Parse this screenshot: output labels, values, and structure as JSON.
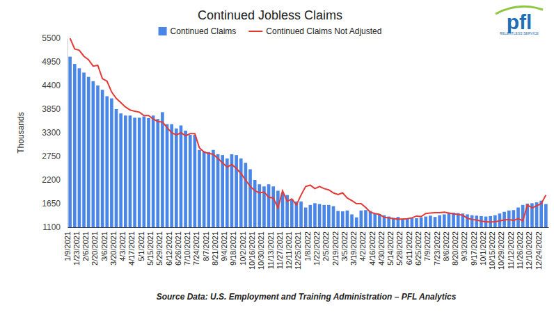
{
  "chart_data": {
    "type": "bar",
    "title": "Continued Jobless Claims",
    "y_label": "Thousands",
    "annotations": [
      "Source Data: U.S. Employment and Training Administration – PFL Analytics",
      "pfl",
      "RELENTLESS SERVICE"
    ],
    "categories": [
      "1/9/2021",
      null,
      "1/23/2021",
      null,
      "2/6/2021",
      null,
      "2/20/2021",
      null,
      "3/6/2021",
      null,
      "3/20/2021",
      null,
      "4/3/2021",
      null,
      "4/17/2021",
      null,
      "5/1/2021",
      null,
      "5/15/2021",
      null,
      "5/29/2021",
      null,
      "6/12/2021",
      null,
      "6/26/2021",
      null,
      "7/10/2021",
      null,
      "7/24/2021",
      null,
      "8/7/2021",
      null,
      "8/21/2021",
      null,
      "9/4/2021",
      null,
      "9/18/2021",
      null,
      "10/2/2021",
      null,
      "10/16/2021",
      null,
      "10/30/2021",
      null,
      "11/13/2021",
      null,
      "11/27/2021",
      null,
      "12/11/2021",
      null,
      "12/25/2021",
      null,
      "1/8/2022",
      null,
      "1/22/2022",
      null,
      "2/5/2022",
      null,
      "2/19/2022",
      null,
      "3/5/2022",
      null,
      "3/19/2022",
      null,
      "4/2/2022",
      null,
      "4/16/2022",
      null,
      "4/30/2022",
      null,
      "5/14/2022",
      null,
      "5/28/2022",
      null,
      "6/11/2022",
      null,
      "6/25/2022",
      null,
      "7/9/2022",
      null,
      "7/23/2022",
      null,
      "8/6/2022",
      null,
      "8/20/2022",
      null,
      "9/3/2022",
      null,
      "9/17/2022",
      null,
      "10/1/2022",
      null,
      "10/15/2022",
      null,
      "10/29/2022",
      null,
      "11/12/2022",
      null,
      "11/26/2022",
      null,
      "12/10/2022",
      null,
      "12/24/2022",
      null
    ],
    "series": [
      {
        "name": "Continued Claims",
        "type": "bar",
        "color": "#4a86e8",
        "values": [
          5070,
          4900,
          4800,
          4700,
          4600,
          4500,
          4400,
          4300,
          4150,
          4100,
          3850,
          3750,
          3700,
          3700,
          3650,
          3650,
          3680,
          3640,
          3700,
          3620,
          3780,
          3500,
          3500,
          3400,
          3470,
          3350,
          3250,
          3250,
          2900,
          2870,
          2850,
          2900,
          2800,
          2780,
          2700,
          2800,
          2780,
          2700,
          2600,
          2450,
          2200,
          2100,
          2050,
          2100,
          2050,
          1950,
          1900,
          1850,
          1750,
          1700,
          1700,
          1560,
          1620,
          1660,
          1640,
          1620,
          1620,
          1590,
          1480,
          1470,
          1490,
          1400,
          1330,
          1490,
          1500,
          1480,
          1420,
          1400,
          1380,
          1350,
          1320,
          1340,
          1300,
          1300,
          1310,
          1310,
          1330,
          1350,
          1370,
          1340,
          1380,
          1400,
          1430,
          1440,
          1430,
          1420,
          1400,
          1380,
          1370,
          1360,
          1350,
          1360,
          1380,
          1420,
          1460,
          1490,
          1500,
          1560,
          1620,
          1650,
          1660,
          1680,
          1720,
          1640
        ]
      },
      {
        "name": "Continued Claims Not Adjusted",
        "type": "line",
        "color": "#e53935",
        "values": [
          5500,
          5250,
          5220,
          5080,
          5000,
          4850,
          4870,
          4560,
          4500,
          4250,
          4100,
          4000,
          3900,
          3830,
          3800,
          3780,
          3700,
          3700,
          3620,
          3560,
          3550,
          3420,
          3300,
          3250,
          3300,
          3230,
          3280,
          3280,
          2950,
          2850,
          2820,
          2800,
          2700,
          2600,
          2500,
          2560,
          2470,
          2350,
          2200,
          2050,
          1950,
          1900,
          1920,
          1800,
          1780,
          1550,
          1950,
          1700,
          1760,
          1620,
          1850,
          2050,
          2080,
          2000,
          2050,
          2000,
          1970,
          1900,
          1860,
          1900,
          1780,
          1720,
          1650,
          1650,
          1560,
          1450,
          1420,
          1400,
          1330,
          1320,
          1300,
          1290,
          1290,
          1300,
          1320,
          1360,
          1350,
          1420,
          1430,
          1440,
          1440,
          1450,
          1430,
          1410,
          1400,
          1380,
          1310,
          1280,
          1270,
          1240,
          1230,
          1220,
          1230,
          1250,
          1270,
          1280,
          1260,
          1300,
          1250,
          1620,
          1550,
          1600,
          1650,
          1850
        ]
      }
    ],
    "ylim": [
      1100,
      5500
    ],
    "yticks": [
      1100,
      1650,
      2200,
      2750,
      3300,
      3850,
      4400,
      4950,
      5500
    ],
    "grid": false,
    "legend": "top"
  }
}
